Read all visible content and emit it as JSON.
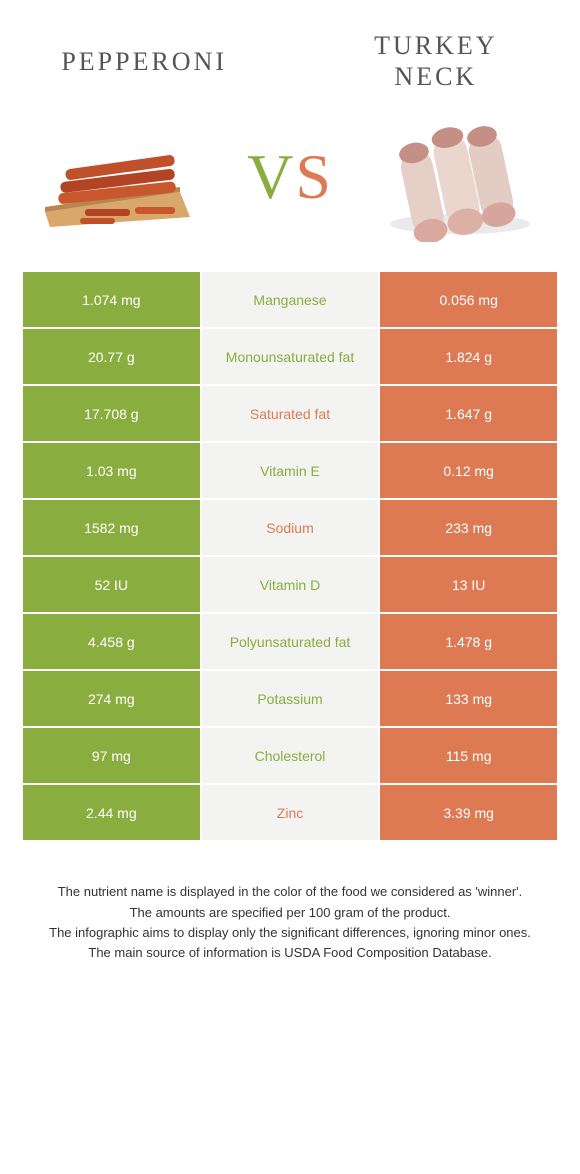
{
  "colors": {
    "green": "#8aad3f",
    "orange": "#dd7a54",
    "mid_bg": "#f3f3f1",
    "text_dark": "#333333",
    "white": "#ffffff"
  },
  "foods": {
    "left": {
      "title": "PEPPERONI"
    },
    "right": {
      "title": "TURKEY NECK"
    }
  },
  "vs": {
    "v": "V",
    "s": "S"
  },
  "rows": [
    {
      "nutrient": "Manganese",
      "left": "1.074 mg",
      "right": "0.056 mg",
      "winner": "left"
    },
    {
      "nutrient": "Monounsaturated fat",
      "left": "20.77 g",
      "right": "1.824 g",
      "winner": "left"
    },
    {
      "nutrient": "Saturated fat",
      "left": "17.708 g",
      "right": "1.647 g",
      "winner": "right"
    },
    {
      "nutrient": "Vitamin E",
      "left": "1.03 mg",
      "right": "0.12 mg",
      "winner": "left"
    },
    {
      "nutrient": "Sodium",
      "left": "1582 mg",
      "right": "233 mg",
      "winner": "right"
    },
    {
      "nutrient": "Vitamin D",
      "left": "52 IU",
      "right": "13 IU",
      "winner": "left"
    },
    {
      "nutrient": "Polyunsaturated fat",
      "left": "4.458 g",
      "right": "1.478 g",
      "winner": "left"
    },
    {
      "nutrient": "Potassium",
      "left": "274 mg",
      "right": "133 mg",
      "winner": "left"
    },
    {
      "nutrient": "Cholesterol",
      "left": "97 mg",
      "right": "115 mg",
      "winner": "left"
    },
    {
      "nutrient": "Zinc",
      "left": "2.44 mg",
      "right": "3.39 mg",
      "winner": "right"
    }
  ],
  "footnotes": [
    "The nutrient name is displayed in the color of the food we considered as 'winner'.",
    "The amounts are specified per 100 gram of the product.",
    "The infographic aims to display only the significant differences, ignoring minor ones.",
    "The main source of information is USDA Food Composition Database."
  ]
}
